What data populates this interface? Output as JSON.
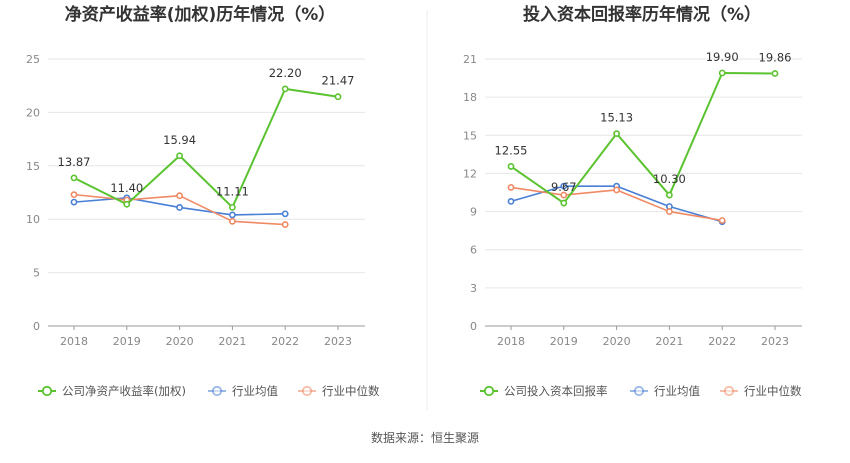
{
  "source_text": "数据来源：恒生聚源",
  "legend_text_color": "#555555",
  "chart_data": [
    {
      "type": "line",
      "title": "净资产收益率(加权)历年情况（%）",
      "categories": [
        "2018",
        "2019",
        "2020",
        "2021",
        "2022",
        "2023"
      ],
      "ylim": [
        0,
        25
      ],
      "yticks": [
        "0",
        "5",
        "10",
        "15",
        "20",
        "25"
      ],
      "ytick_values": [
        0,
        5,
        10,
        15,
        20,
        25
      ],
      "grid": true,
      "legend_position": "bottom",
      "series": [
        {
          "name": "公司净资产收益率(加权)",
          "color": "#5ac32f",
          "values": [
            13.87,
            11.4,
            15.94,
            11.11,
            22.2,
            21.47
          ],
          "labels": [
            "13.87",
            "11.40",
            "15.94",
            "11.11",
            "22.20",
            "21.47"
          ]
        },
        {
          "name": "行业均值",
          "color": "#4a7fd6",
          "values": [
            11.6,
            12.0,
            11.1,
            10.4,
            10.5,
            null
          ]
        },
        {
          "name": "行业中位数",
          "color": "#f08a65",
          "values": [
            12.3,
            11.8,
            12.2,
            9.8,
            9.5,
            null
          ]
        }
      ]
    },
    {
      "type": "line",
      "title": "投入资本回报率历年情况（%）",
      "categories": [
        "2018",
        "2019",
        "2020",
        "2021",
        "2022",
        "2023"
      ],
      "ylim": [
        0,
        21
      ],
      "yticks": [
        "0",
        "3",
        "6",
        "9",
        "12",
        "15",
        "18",
        "21"
      ],
      "ytick_values": [
        0,
        3,
        6,
        9,
        12,
        15,
        18,
        21
      ],
      "grid": true,
      "legend_position": "bottom",
      "series": [
        {
          "name": "公司投入资本回报率",
          "color": "#5ac32f",
          "values": [
            12.55,
            9.67,
            15.13,
            10.3,
            19.9,
            19.86
          ],
          "labels": [
            "12.55",
            "9.67",
            "15.13",
            "10.30",
            "19.90",
            "19.86"
          ]
        },
        {
          "name": "行业均值",
          "color": "#4a7fd6",
          "values": [
            9.8,
            11.0,
            11.0,
            9.4,
            8.2,
            null
          ]
        },
        {
          "name": "行业中位数",
          "color": "#f08a65",
          "values": [
            10.9,
            10.3,
            10.7,
            9.0,
            8.3,
            null
          ]
        }
      ]
    }
  ]
}
